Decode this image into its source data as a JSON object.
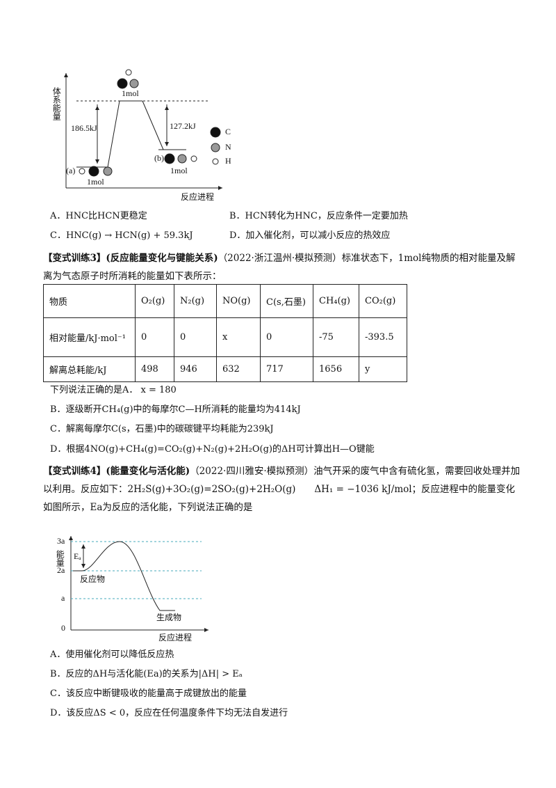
{
  "figure1": {
    "y_label": "体系能量",
    "barrier_a": "186.5kJ",
    "barrier_b": "127.2kJ",
    "ts_amount": "1mol",
    "a_label": "(a)",
    "a_amount": "1mol",
    "b_label": "(b)",
    "b_amount": "1mol",
    "legend": [
      "C",
      "N",
      "H"
    ],
    "x_label": "反应进程"
  },
  "q2_options": [
    "A．HNC比HCN更稳定",
    "B．HCN转化为HNC，反应条件一定要加热",
    "C．HNC(g) → HCN(g) + 59.3kJ",
    "D．加入催化剂，可以减小反应的热效应"
  ],
  "q3": {
    "tag": "【变式训练3】",
    "topic": "(反应能量变化与键能关系)",
    "source": "（2022·浙江温州·模拟预测）",
    "text": "标准状态下，1mol纯物质的相对能量及解离为气态原子时所消耗的能量如下表所示："
  },
  "table": {
    "header": [
      "物质",
      "O₂(g)",
      "N₂(g)",
      "NO(g)",
      "C(s,石墨)",
      "CH₄(g)",
      "CO₂(g)"
    ],
    "rows": [
      [
        "相对能量/kJ·mol⁻¹",
        "0",
        "0",
        "x",
        "0",
        "-75",
        "-393.5"
      ],
      [
        "解离总耗能/kJ",
        "498",
        "946",
        "632",
        "717",
        "1656",
        "y"
      ]
    ]
  },
  "q3_options": [
    "下列说法正确的是A． x = 180",
    "B．逐级断开CH₄(g)中的每摩尔C—H所消耗的能量均为414kJ",
    "C．解离每摩尔C(s，石墨)中的碳碳键平均耗能为239kJ",
    "D．根据4NO(g)+CH₄(g)=CO₂(g)+N₂(g)+2H₂O(g)的ΔH可计算出H—O键能"
  ],
  "q4": {
    "tag": "【变式训练4】",
    "topic": "(能量变化与活化能)",
    "source": "（2022·四川雅安·模拟预测）",
    "text": "油气开采的废气中含有硫化氢，需要回收处理并加以利用。反应如下：2H₂S(g)+3O₂(g)=2SO₂(g)+2H₂O(g)　　ΔH₁ = −1036 kJ/mol；反应进程中的能量变化如图所示，Ea为反应的活化能，下列说法正确的是"
  },
  "figure2": {
    "y_label": "能量",
    "ticks": [
      "3a",
      "2a",
      "a",
      "0"
    ],
    "ea": "Eₐ",
    "reactant": "反应物",
    "product": "生成物",
    "x_label": "反应进程"
  },
  "q4_options": [
    "A．使用催化剂可以降低反应热",
    "B．反应的ΔH与活化能(Ea)的关系为|ΔH| > Eₐ",
    "C．该反应中断键吸收的能量高于成键放出的能量",
    "D．该反应ΔS < 0，反应在任何温度条件下均无法自发进行"
  ]
}
